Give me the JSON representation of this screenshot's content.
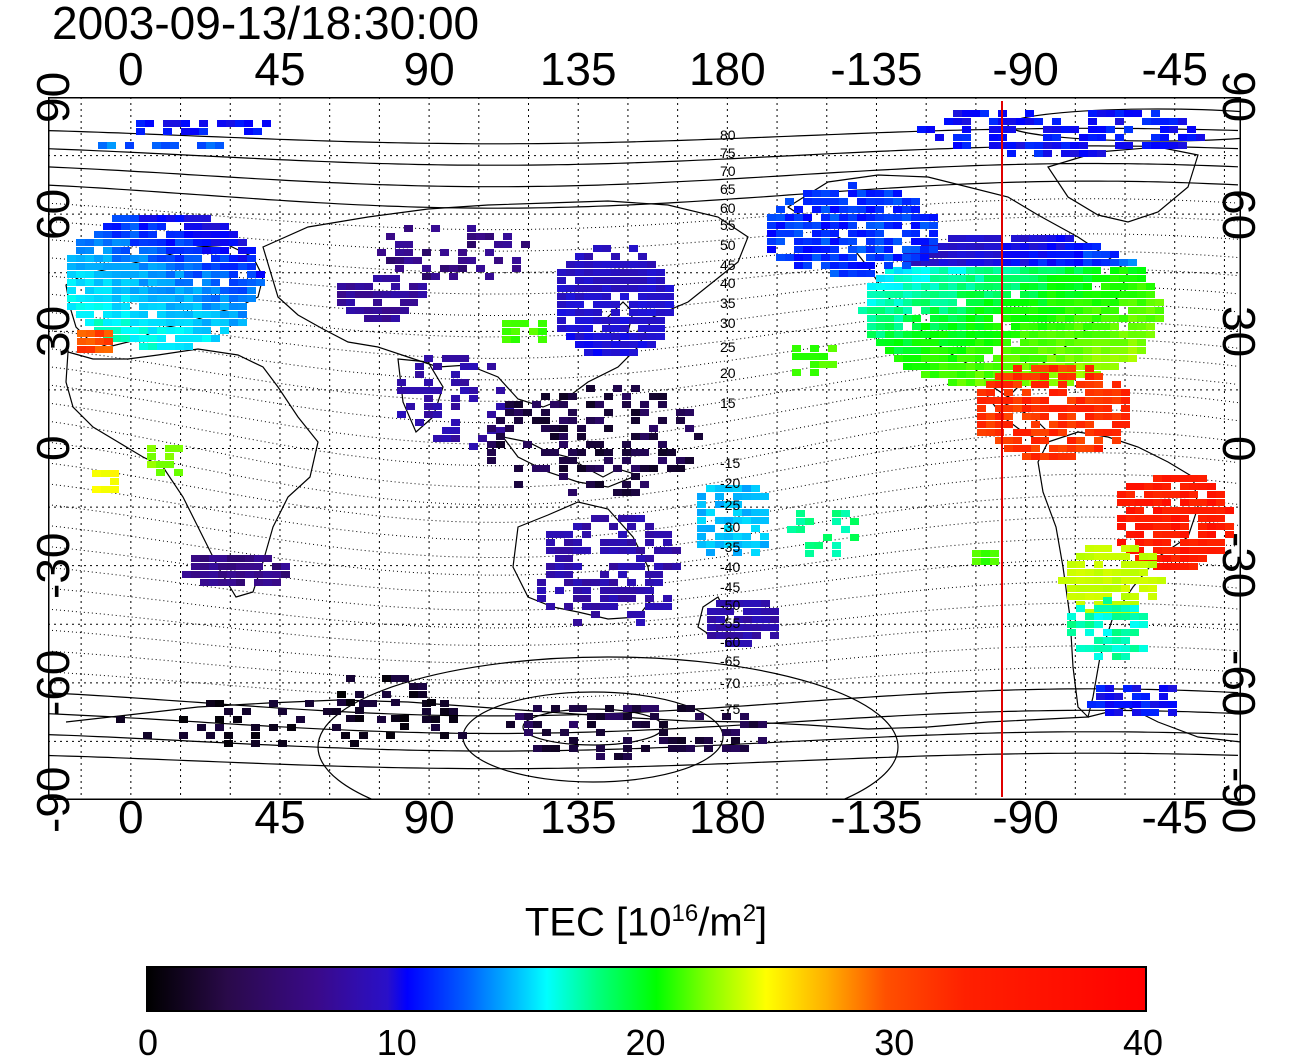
{
  "timestamp": "2003-09-13/18:30:00",
  "lon_ticks": [
    "0",
    "45",
    "90",
    "135",
    "180",
    "-135",
    "-90",
    "-45"
  ],
  "lat_ticks": [
    "90",
    "60",
    "30",
    "0",
    "-30",
    "-60",
    "-90"
  ],
  "mlat_labels_north": [
    "80",
    "75",
    "70",
    "65",
    "60",
    "55",
    "50",
    "45",
    "40",
    "35",
    "30",
    "25",
    "20",
    "15"
  ],
  "mlat_labels_south": [
    "-15",
    "-20",
    "-25",
    "-30",
    "-35",
    "-40",
    "-45",
    "-50",
    "-55",
    "-60",
    "-65",
    "-70",
    "-75"
  ],
  "colorbar": {
    "title_prefix": "TEC  [10",
    "title_exp1": "16",
    "title_mid": "/m",
    "title_exp2": "2",
    "title_suffix": "]",
    "ticks": [
      "0",
      "10",
      "20",
      "30",
      "40"
    ],
    "range": [
      0,
      40
    ]
  },
  "meridian_marker": {
    "longitude": -95,
    "color": "#e00000"
  },
  "colors": {
    "v0": "#000000",
    "v5": "#3a0a8a",
    "v10": "#0000ff",
    "v15": "#00ffff",
    "v20": "#00ff00",
    "v30": "#ffff00",
    "v40": "#ff0000"
  }
}
